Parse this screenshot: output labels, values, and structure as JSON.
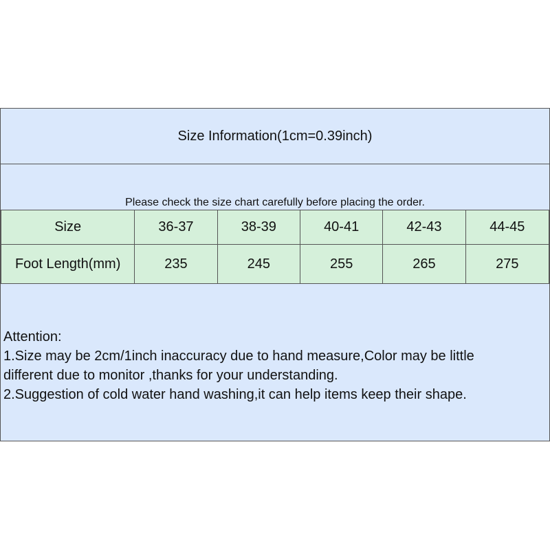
{
  "title": "Size Information(1cm=0.39inch)",
  "subtitle": "Please check the size chart carefully before placing the order.",
  "table": {
    "headers": [
      "Size",
      "36-37",
      "38-39",
      "40-41",
      "42-43",
      "44-45"
    ],
    "row": [
      "Foot Length(mm)",
      "235",
      "245",
      "255",
      "265",
      "275"
    ]
  },
  "notes": [
    "Attention:",
    "1.Size may be 2cm/1inch inaccuracy due to hand measure,Color may be little",
    "different due to monitor ,thanks for your understanding.",
    "2.Suggestion of cold water hand washing,it can help items keep their shape."
  ],
  "colors": {
    "header_bg": "#dae8fc",
    "table_bg": "#d5f0da"
  }
}
